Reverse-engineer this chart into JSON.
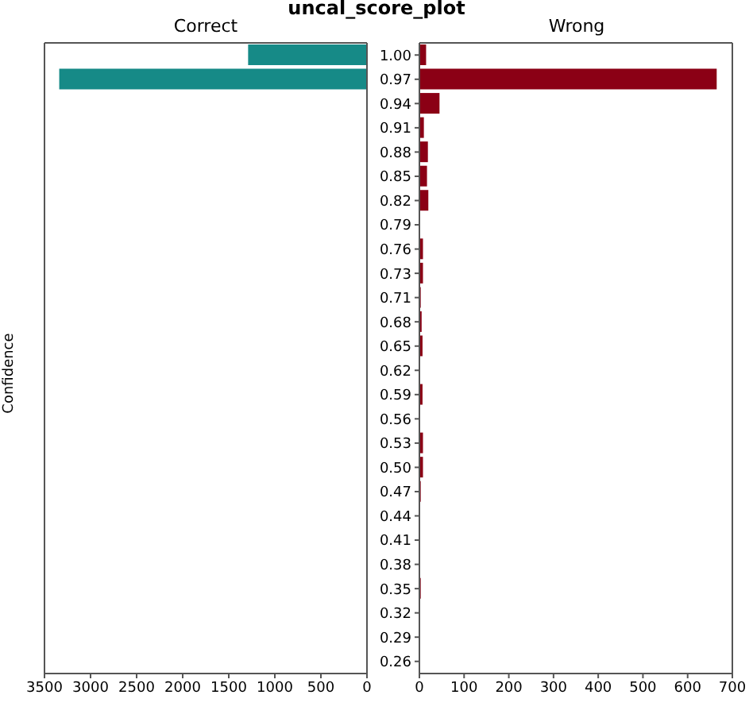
{
  "chart_data": [
    {
      "type": "bar",
      "title": "uncal_score_plot",
      "subtitle": "Correct",
      "ylabel": "Confidence",
      "orientation": "horizontal",
      "tick_labels": "x",
      "categories": [
        "1.00",
        "0.97",
        "0.94",
        "0.91",
        "0.88",
        "0.85",
        "0.82",
        "0.79",
        "0.76",
        "0.73",
        "0.71",
        "0.68",
        "0.65",
        "0.62",
        "0.59",
        "0.56",
        "0.53",
        "0.50",
        "0.47",
        "0.44",
        "0.41",
        "0.38",
        "0.35",
        "0.32",
        "0.29",
        "0.26"
      ],
      "values": [
        1290,
        3340,
        0,
        0,
        0,
        0,
        0,
        0,
        0,
        0,
        0,
        0,
        0,
        0,
        0,
        0,
        0,
        0,
        0,
        0,
        0,
        0,
        0,
        0,
        0,
        0
      ],
      "color": "#168a87",
      "xlim": [
        3500,
        0
      ],
      "xticks": [
        3500,
        3000,
        2500,
        2000,
        1500,
        1000,
        500,
        0
      ]
    },
    {
      "type": "bar",
      "title": "Wrong",
      "orientation": "horizontal",
      "categories": [
        "1.00",
        "0.97",
        "0.94",
        "0.91",
        "0.88",
        "0.85",
        "0.82",
        "0.79",
        "0.76",
        "0.73",
        "0.71",
        "0.68",
        "0.65",
        "0.62",
        "0.59",
        "0.56",
        "0.53",
        "0.50",
        "0.47",
        "0.44",
        "0.41",
        "0.38",
        "0.35",
        "0.32",
        "0.29",
        "0.26"
      ],
      "values": [
        15,
        665,
        45,
        10,
        19,
        17,
        20,
        1,
        8,
        8,
        3,
        5,
        7,
        1,
        7,
        1,
        8,
        8,
        3,
        0,
        0,
        1,
        3,
        0,
        0,
        0
      ],
      "color": "#8b0015",
      "xlim": [
        0,
        700
      ],
      "xticks": [
        0,
        100,
        200,
        300,
        400,
        500,
        600,
        700
      ]
    }
  ]
}
